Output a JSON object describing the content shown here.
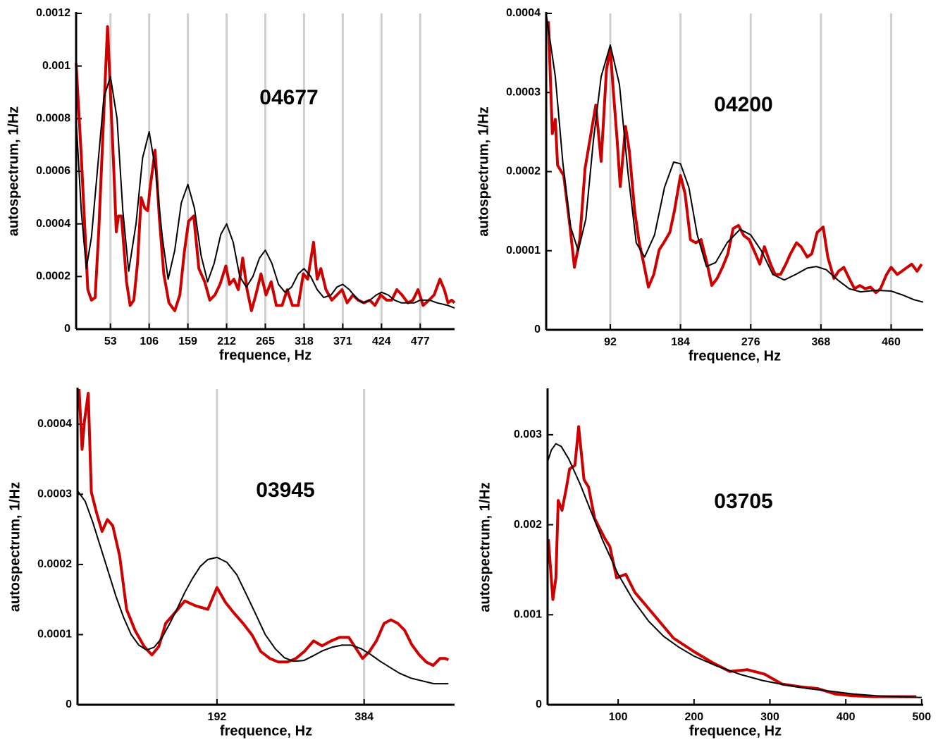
{
  "chart_data": [
    {
      "type": "line",
      "title": "04677",
      "xlabel": "frequence, Hz",
      "ylabel": "autospectrum, 1/Hz",
      "xlim": [
        6,
        524
      ],
      "ylim": [
        0,
        0.0012
      ],
      "xticks": [
        53,
        106,
        159,
        212,
        265,
        318,
        371,
        424,
        477
      ],
      "yticks": [
        0,
        0.0002,
        0.0004,
        0.0006,
        0.0008,
        0.001,
        0.0012
      ],
      "grid": true,
      "series": [
        {
          "color": "#cc0000",
          "width": 4,
          "x": [
            6,
            13,
            22,
            27,
            32,
            37,
            41,
            46,
            49,
            53,
            58,
            61,
            64,
            68,
            72,
            75,
            80,
            85,
            90,
            95,
            100,
            104,
            107,
            114,
            120,
            126,
            133,
            141,
            148,
            154,
            160,
            167,
            174,
            182,
            189,
            196,
            203,
            211,
            216,
            222,
            228,
            234,
            240,
            246,
            252,
            259,
            266,
            273,
            280,
            288,
            295,
            302,
            310,
            317,
            323,
            331,
            336,
            341,
            348,
            356,
            363,
            370,
            377,
            385,
            392,
            400,
            408,
            415,
            423,
            431,
            438,
            445,
            452,
            460,
            467,
            474,
            481,
            489,
            496,
            504,
            510,
            515,
            520,
            524
          ],
          "values": [
            0.00101,
            0.00066,
            0.00015,
            0.00011,
            0.00012,
            0.00037,
            0.00063,
            0.00096,
            0.00115,
            0.0009,
            0.00058,
            0.00037,
            0.00043,
            0.00043,
            0.00029,
            0.00018,
            9e-05,
            0.00011,
            0.00025,
            0.0005,
            0.00046,
            0.00045,
            0.00053,
            0.00068,
            0.00042,
            0.00021,
            0.0001,
            7e-05,
            0.00013,
            0.00029,
            0.00041,
            0.00043,
            0.00023,
            0.00018,
            0.00011,
            0.00013,
            0.00017,
            0.00024,
            0.00017,
            0.00019,
            0.00015,
            0.00027,
            0.00015,
            7e-05,
            0.00013,
            0.00021,
            0.00013,
            0.00018,
            9e-05,
            9e-05,
            0.00015,
            9e-05,
            9e-05,
            0.00021,
            0.00019,
            0.00033,
            0.00019,
            0.00023,
            0.00015,
            0.00011,
            0.00013,
            0.00015,
            0.0001,
            0.00013,
            0.00011,
            0.0001,
            0.00011,
            9e-05,
            0.00013,
            0.00011,
            0.00011,
            0.00015,
            0.00013,
            0.0001,
            0.00011,
            0.00015,
            9e-05,
            0.00011,
            0.00013,
            0.00019,
            0.00015,
            0.0001,
            0.00011,
            0.0001
          ]
        },
        {
          "color": "#000000",
          "width": 2,
          "x": [
            6,
            13,
            20,
            27,
            35,
            44,
            53,
            62,
            70,
            78,
            88,
            97,
            106,
            115,
            124,
            132,
            141,
            150,
            159,
            168,
            177,
            186,
            195,
            204,
            212,
            221,
            230,
            239,
            248,
            257,
            265,
            274,
            283,
            292,
            301,
            310,
            318,
            327,
            336,
            345,
            355,
            363,
            371,
            380,
            389,
            398,
            408,
            417,
            424,
            433,
            442,
            451,
            460,
            469,
            477,
            490,
            500,
            515,
            524
          ],
          "values": [
            0.0008,
            0.00045,
            0.00023,
            0.00035,
            0.0006,
            0.00088,
            0.00096,
            0.0008,
            0.00045,
            0.00022,
            0.0004,
            0.00065,
            0.00075,
            0.0006,
            0.00035,
            0.00019,
            0.0003,
            0.00048,
            0.00055,
            0.00046,
            0.00028,
            0.00018,
            0.00025,
            0.00036,
            0.0004,
            0.00033,
            0.0002,
            0.00016,
            0.0002,
            0.00027,
            0.0003,
            0.00025,
            0.00017,
            0.00014,
            0.00016,
            0.00021,
            0.00023,
            0.0002,
            0.00015,
            0.00012,
            0.00013,
            0.00016,
            0.00017,
            0.00015,
            0.00012,
            0.0001,
            0.00011,
            0.00013,
            0.00014,
            0.00013,
            0.00011,
            0.0001,
            0.0001,
            0.0001,
            0.00011,
            0.00011,
            0.0001,
            9e-05,
            8e-05
          ]
        }
      ]
    },
    {
      "type": "line",
      "title": "04200",
      "xlabel": "frequence, Hz",
      "ylabel": "autospectrum, 1/Hz",
      "xlim": [
        8,
        502
      ],
      "ylim": [
        0,
        0.0004
      ],
      "xticks": [
        92,
        184,
        276,
        368,
        460
      ],
      "yticks": [
        0,
        0.0001,
        0.0002,
        0.0003,
        0.0004
      ],
      "grid": true,
      "series": [
        {
          "color": "#cc0000",
          "width": 4,
          "x": [
            11,
            16,
            20,
            23,
            31,
            39,
            45,
            52,
            59,
            66,
            73,
            80,
            87,
            92,
            96,
            101,
            105,
            112,
            117,
            124,
            130,
            136,
            142,
            149,
            156,
            162,
            170,
            176,
            184,
            190,
            197,
            204,
            211,
            219,
            225,
            232,
            239,
            246,
            253,
            260,
            267,
            274,
            280,
            288,
            294,
            302,
            308,
            315,
            322,
            328,
            336,
            342,
            350,
            356,
            363,
            371,
            377,
            385,
            391,
            398,
            405,
            412,
            419,
            426,
            433,
            440,
            446,
            454,
            460,
            468,
            474,
            481,
            487,
            494,
            500
          ],
          "values": [
            0.00039,
            0.000248,
            0.000266,
            0.000208,
            0.000195,
            0.000132,
            7.9e-05,
            0.000114,
            0.000204,
            0.000244,
            0.000284,
            0.000213,
            0.000329,
            0.000355,
            0.000302,
            0.00024,
            0.000181,
            0.000257,
            0.000226,
            0.00015,
            0.00011,
            8.3e-05,
            5.4e-05,
            7e-05,
            0.000101,
            0.00011,
            0.000123,
            0.00015,
            0.000195,
            0.000172,
            0.000114,
            0.00011,
            0.000114,
            8.3e-05,
            5.6e-05,
            6.5e-05,
            7.9e-05,
            9.6e-05,
            0.000128,
            0.000132,
            0.000119,
            0.000114,
            0.000101,
            8.3e-05,
            0.000105,
            8.3e-05,
            7e-05,
            7e-05,
            8.3e-05,
            9.6e-05,
            0.00011,
            0.000105,
            9.2e-05,
            9.6e-05,
            0.000123,
            0.00013,
            9.2e-05,
            6.5e-05,
            7.4e-05,
            7.9e-05,
            6.5e-05,
            5.2e-05,
            5.6e-05,
            5.2e-05,
            5.4e-05,
            4.7e-05,
            5.2e-05,
            7e-05,
            7.9e-05,
            7e-05,
            7.4e-05,
            7.9e-05,
            8.3e-05,
            7.4e-05,
            8.3e-05
          ]
        },
        {
          "color": "#000000",
          "width": 2,
          "x": [
            8,
            20,
            30,
            40,
            50,
            60,
            70,
            80,
            92,
            104,
            115,
            126,
            137,
            150,
            163,
            175,
            184,
            195,
            206,
            218,
            230,
            245,
            262,
            276,
            290,
            305,
            320,
            335,
            350,
            362,
            375,
            390,
            405,
            420,
            440,
            460,
            475,
            490,
            502
          ],
          "values": [
            0.0004,
            0.00032,
            0.00021,
            0.00013,
            0.0001,
            0.00014,
            0.00024,
            0.00032,
            0.00036,
            0.00031,
            0.0002,
            0.00011,
            9.2e-05,
            0.00012,
            0.00018,
            0.000212,
            0.00021,
            0.00018,
            0.00012,
            8e-05,
            8.5e-05,
            0.00011,
            0.000127,
            0.00012,
            0.0001,
            7e-05,
            6.3e-05,
            7e-05,
            7.8e-05,
            8e-05,
            7.6e-05,
            6.3e-05,
            5.2e-05,
            4.8e-05,
            5e-05,
            4.9e-05,
            4.4e-05,
            3.8e-05,
            3.5e-05
          ]
        }
      ]
    },
    {
      "type": "line",
      "title": "03945",
      "xlabel": "frequence, Hz",
      "ylabel": "autospectrum, 1/Hz",
      "xlim": [
        10,
        502
      ],
      "ylim": [
        0,
        0.00045
      ],
      "xticks": [
        192,
        384
      ],
      "yticks": [
        0,
        0.0001,
        0.0002,
        0.0003,
        0.0004
      ],
      "grid": true,
      "series": [
        {
          "color": "#cc0000",
          "width": 4,
          "x": [
            12,
            16,
            19,
            24,
            28,
            35,
            42,
            49,
            56,
            65,
            74,
            85,
            97,
            107,
            116,
            125,
            137,
            150,
            164,
            180,
            192,
            203,
            214,
            226,
            238,
            249,
            261,
            272,
            284,
            295,
            306,
            318,
            329,
            341,
            352,
            364,
            373,
            382,
            391,
            400,
            410,
            419,
            428,
            437,
            446,
            456,
            465,
            474,
            483,
            490,
            494
          ],
          "values": [
            0.00045,
            0.000364,
            0.000404,
            0.000444,
            0.000303,
            0.000273,
            0.000247,
            0.000264,
            0.000255,
            0.000212,
            0.000136,
            0.000106,
            8.3e-05,
            7.1e-05,
            8.3e-05,
            0.000116,
            0.000131,
            0.000148,
            0.000141,
            0.000136,
            0.000167,
            0.000146,
            0.000131,
            0.000116,
            9.9e-05,
            7.6e-05,
            6.6e-05,
            6.1e-05,
            6.1e-05,
            6.6e-05,
            7.6e-05,
            9.1e-05,
            8.4e-05,
            9.1e-05,
            9.6e-05,
            9.6e-05,
            8.1e-05,
            6.6e-05,
            7.6e-05,
            9.1e-05,
            0.000116,
            0.000121,
            0.000116,
            0.000106,
            8.6e-05,
            7.1e-05,
            6.1e-05,
            5.6e-05,
            6.6e-05,
            6.6e-05,
            6.4e-05
          ]
        },
        {
          "color": "#000000",
          "width": 2,
          "x": [
            10,
            20,
            30,
            40,
            50,
            60,
            70,
            80,
            90,
            100,
            110,
            120,
            130,
            140,
            150,
            160,
            170,
            180,
            192,
            205,
            218,
            230,
            243,
            255,
            268,
            280,
            292,
            305,
            318,
            330,
            342,
            355,
            367,
            380,
            392,
            405,
            418,
            430,
            445,
            460,
            475,
            494
          ],
          "values": [
            0.000305,
            0.00029,
            0.00026,
            0.000225,
            0.00019,
            0.000155,
            0.000125,
            0.0001,
            8.5e-05,
            7.8e-05,
            8.2e-05,
            9.5e-05,
            0.000115,
            0.000137,
            0.00016,
            0.00018,
            0.000197,
            0.000207,
            0.00021,
            0.000203,
            0.000185,
            0.000158,
            0.000128,
            0.0001,
            8e-05,
            6.7e-05,
            6.2e-05,
            6.3e-05,
            7e-05,
            7.7e-05,
            8.2e-05,
            8.5e-05,
            8.5e-05,
            8e-05,
            7.2e-05,
            6.2e-05,
            5.3e-05,
            4.5e-05,
            3.8e-05,
            3.4e-05,
            3e-05,
            3e-05
          ]
        }
      ]
    },
    {
      "type": "line",
      "title": "03705",
      "xlabel": "frequence, Hz",
      "ylabel": "autospectrum, 1/Hz",
      "xlim": [
        7,
        502
      ],
      "ylim": [
        0,
        0.0035
      ],
      "xticks": [
        100,
        200,
        300,
        400,
        500
      ],
      "yticks": [
        0,
        0.001,
        0.002,
        0.003
      ],
      "grid": false,
      "series": [
        {
          "color": "#cc0000",
          "width": 4,
          "x": [
            8,
            14,
            18,
            21,
            26,
            32,
            36,
            43,
            48,
            55,
            61,
            69,
            75,
            83,
            89,
            98,
            110,
            122,
            145,
            173,
            200,
            224,
            247,
            270,
            293,
            316,
            340,
            363,
            386,
            409,
            437,
            465,
            493
          ],
          "values": [
            0.00184,
            0.00117,
            0.00141,
            0.00227,
            0.00216,
            0.00242,
            0.00262,
            0.00266,
            0.00309,
            0.0025,
            0.00242,
            0.00207,
            0.00197,
            0.00184,
            0.00176,
            0.00141,
            0.00145,
            0.00125,
            0.00102,
            0.00074,
            0.00059,
            0.00047,
            0.00037,
            0.00039,
            0.00034,
            0.00023,
            0.0002,
            0.00018,
            0.00012,
            0.0001,
            9e-05,
            9e-05,
            9e-05
          ]
        },
        {
          "color": "#000000",
          "width": 2,
          "x": [
            7,
            12,
            18,
            25,
            35,
            50,
            65,
            80,
            100,
            120,
            140,
            160,
            180,
            200,
            230,
            260,
            290,
            320,
            350,
            380,
            410,
            440,
            470,
            500
          ],
          "values": [
            0.0027,
            0.00283,
            0.0029,
            0.00287,
            0.00273,
            0.00245,
            0.00213,
            0.00182,
            0.00145,
            0.00116,
            0.00093,
            0.00076,
            0.00064,
            0.00054,
            0.00043,
            0.00034,
            0.00027,
            0.00022,
            0.00018,
            0.00015,
            0.00012,
            0.0001,
            9e-05,
            8e-05
          ]
        }
      ]
    }
  ]
}
